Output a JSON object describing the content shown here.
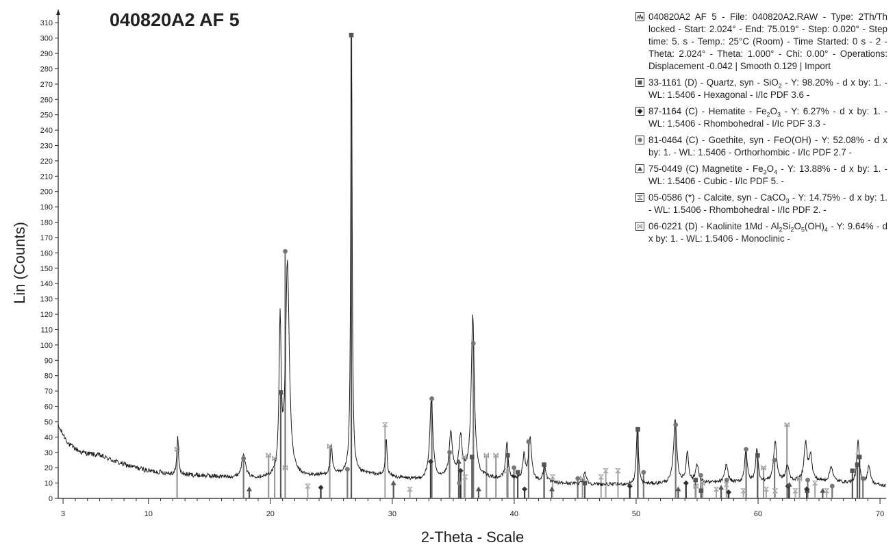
{
  "chart_data": {
    "type": "line",
    "title": "040820A2 AF 5",
    "xlabel": "2-Theta - Scale",
    "ylabel": "Lin (Counts)",
    "xlim": [
      2.6,
      70.5
    ],
    "ylim": [
      0,
      315
    ],
    "x_ticks": [
      3,
      10,
      20,
      30,
      40,
      50,
      60,
      70
    ],
    "x_tick_labels": [
      "3",
      "10",
      "20",
      "30",
      "40",
      "50",
      "60",
      "70"
    ],
    "y_ticks": [
      0,
      10,
      20,
      30,
      40,
      50,
      60,
      70,
      80,
      90,
      100,
      110,
      120,
      130,
      140,
      150,
      160,
      170,
      180,
      190,
      200,
      210,
      220,
      230,
      240,
      250,
      260,
      270,
      280,
      290,
      300,
      310
    ],
    "grid": false,
    "legend_position": "right",
    "pattern": {
      "name": "040820A2 AF 5",
      "baseline": [
        [
          2.6,
          47
        ],
        [
          3.5,
          35
        ],
        [
          4.5,
          30
        ],
        [
          6,
          28
        ],
        [
          8,
          22
        ],
        [
          10,
          18
        ],
        [
          12,
          16
        ],
        [
          14,
          15
        ],
        [
          16,
          14
        ],
        [
          18,
          13
        ],
        [
          20,
          13
        ],
        [
          23,
          14
        ],
        [
          26,
          16
        ],
        [
          28,
          16
        ],
        [
          30,
          14
        ],
        [
          32,
          12
        ],
        [
          34,
          13
        ],
        [
          36,
          15
        ],
        [
          38,
          13
        ],
        [
          40,
          12
        ],
        [
          43,
          10
        ],
        [
          46,
          9
        ],
        [
          50,
          9
        ],
        [
          54,
          10
        ],
        [
          58,
          10
        ],
        [
          62,
          11
        ],
        [
          66,
          11
        ],
        [
          70.5,
          8
        ]
      ],
      "peaks": [
        [
          12.4,
          26,
          0.07
        ],
        [
          17.8,
          16,
          0.18
        ],
        [
          20.8,
          100,
          0.1
        ],
        [
          21.4,
          140,
          0.18
        ],
        [
          25.0,
          18,
          0.1
        ],
        [
          26.65,
          290,
          0.07
        ],
        [
          29.5,
          25,
          0.08
        ],
        [
          33.2,
          52,
          0.15
        ],
        [
          34.8,
          28,
          0.15
        ],
        [
          35.6,
          25,
          0.15
        ],
        [
          36.6,
          105,
          0.15
        ],
        [
          39.4,
          24,
          0.12
        ],
        [
          40.8,
          16,
          0.12
        ],
        [
          41.3,
          28,
          0.15
        ],
        [
          42.5,
          10,
          0.15
        ],
        [
          45.8,
          8,
          0.15
        ],
        [
          50.1,
          38,
          0.1
        ],
        [
          53.2,
          42,
          0.15
        ],
        [
          54.2,
          20,
          0.12
        ],
        [
          55.0,
          12,
          0.15
        ],
        [
          57.4,
          12,
          0.15
        ],
        [
          59.0,
          22,
          0.12
        ],
        [
          59.9,
          22,
          0.12
        ],
        [
          61.4,
          26,
          0.15
        ],
        [
          62.4,
          10,
          0.15
        ],
        [
          63.9,
          24,
          0.15
        ],
        [
          64.3,
          16,
          0.15
        ],
        [
          66.0,
          10,
          0.15
        ],
        [
          68.2,
          28,
          0.12
        ],
        [
          69.1,
          12,
          0.15
        ]
      ]
    },
    "phases": [
      {
        "id": "quartz",
        "name": "33-1161 (D) - Quartz, syn - SiO2",
        "color": "#555555",
        "marker": "square",
        "lines": [
          [
            20.85,
            69
          ],
          [
            26.64,
            302
          ],
          [
            36.54,
            27
          ],
          [
            39.46,
            28
          ],
          [
            40.29,
            17
          ],
          [
            42.45,
            22
          ],
          [
            45.79,
            10
          ],
          [
            50.14,
            45
          ],
          [
            54.87,
            12
          ],
          [
            55.33,
            5
          ],
          [
            59.96,
            28
          ],
          [
            64.03,
            5
          ],
          [
            67.74,
            18
          ],
          [
            68.14,
            22
          ],
          [
            68.32,
            27
          ]
        ]
      },
      {
        "id": "hematite",
        "name": "87-1164 (C) - Hematite - Fe2O3",
        "color": "#333333",
        "marker": "diamond",
        "lines": [
          [
            24.14,
            7
          ],
          [
            33.15,
            24
          ],
          [
            35.61,
            18
          ],
          [
            40.85,
            6
          ],
          [
            49.48,
            8
          ],
          [
            54.09,
            10
          ],
          [
            57.59,
            4
          ],
          [
            62.45,
            8
          ],
          [
            63.99,
            6
          ]
        ]
      },
      {
        "id": "goethite",
        "name": "81-0464 (C) - Goethite, syn - FeO(OH)",
        "color": "#777777",
        "marker": "circle",
        "lines": [
          [
            17.8,
            26
          ],
          [
            21.22,
            161
          ],
          [
            26.32,
            19
          ],
          [
            33.24,
            65
          ],
          [
            34.7,
            30
          ],
          [
            35.5,
            10
          ],
          [
            36.65,
            101
          ],
          [
            39.98,
            20
          ],
          [
            41.18,
            37
          ],
          [
            45.21,
            13
          ],
          [
            50.61,
            17
          ],
          [
            53.24,
            48
          ],
          [
            55.3,
            15
          ],
          [
            57.43,
            12
          ],
          [
            59.02,
            32
          ],
          [
            61.35,
            25
          ],
          [
            64.07,
            12
          ],
          [
            66.08,
            8
          ],
          [
            68.6,
            13
          ]
        ]
      },
      {
        "id": "magnetite",
        "name": "75-0449 (C) Magnetite - Fe3O4",
        "color": "#555555",
        "marker": "triangle",
        "lines": [
          [
            18.27,
            6
          ],
          [
            30.1,
            10
          ],
          [
            35.45,
            24
          ],
          [
            37.08,
            6
          ],
          [
            43.09,
            6
          ],
          [
            53.45,
            6
          ],
          [
            56.97,
            7
          ],
          [
            62.57,
            9
          ],
          [
            65.3,
            5
          ]
        ]
      },
      {
        "id": "calcite",
        "name": "05-0586 (*) - Calcite, syn - CaCO3",
        "color": "#aaaaaa",
        "marker": "hourglass",
        "lines": [
          [
            23.06,
            8
          ],
          [
            29.41,
            48
          ],
          [
            31.44,
            6
          ],
          [
            35.97,
            14
          ],
          [
            39.4,
            18
          ],
          [
            43.15,
            14
          ],
          [
            47.12,
            14
          ],
          [
            47.51,
            18
          ],
          [
            48.51,
            18
          ],
          [
            56.57,
            6
          ],
          [
            57.4,
            9
          ],
          [
            58.8,
            5
          ],
          [
            60.67,
            6
          ],
          [
            61.4,
            5
          ],
          [
            63.06,
            5
          ],
          [
            64.67,
            10
          ],
          [
            65.62,
            5
          ]
        ]
      },
      {
        "id": "kaolinite",
        "name": "06-0221 (D) - Kaolinite 1Md - Al2Si2O5(OH)4",
        "color": "#999999",
        "marker": "bowtie",
        "lines": [
          [
            12.35,
            32
          ],
          [
            19.85,
            28
          ],
          [
            20.35,
            26
          ],
          [
            21.22,
            20
          ],
          [
            24.87,
            34
          ],
          [
            35.9,
            27
          ],
          [
            37.72,
            28
          ],
          [
            38.5,
            28
          ],
          [
            45.6,
            13
          ],
          [
            54.9,
            8
          ],
          [
            55.45,
            10
          ],
          [
            60.45,
            20
          ],
          [
            62.37,
            48
          ],
          [
            63.4,
            13
          ]
        ]
      }
    ]
  },
  "legend": {
    "entries": [
      {
        "symbol": "pattern-icon",
        "html": "040820A2 AF 5 - File: 040820A2.RAW - Type: 2Th/Th locked - Start: 2.024° - End: 75.019° - Step: 0.020° - Step time: 5. s - Temp.: 25°C (Room) - Time Started: 0 s - 2 - Theta: 2.024° - Theta: 1.000° - Chi: 0.00° - Operations: Displacement -0.042 | Smooth 0.129 | Import"
      },
      {
        "symbol": "square-icon",
        "html": "33-1161 (D) - Quartz, syn - SiO<sub>2</sub> - Y: 98.20% - d x by: 1. - WL: 1.5406 - Hexagonal - I/Ic PDF 3.6 -"
      },
      {
        "symbol": "diamond-icon",
        "html": "87-1164 (C) - Hematite - Fe<sub>2</sub>O<sub>3</sub> - Y: 6.27% - d x by: 1. - WL: 1.5406 - Rhombohedral - I/Ic PDF 3.3 -"
      },
      {
        "symbol": "circle-icon",
        "html": "81-0464 (C) - Goethite, syn - FeO(OH) - Y: 52.08% - d x by: 1. - WL: 1.5406 - Orthorhombic - I/Ic PDF 2.7 -"
      },
      {
        "symbol": "triangle-icon",
        "html": "75-0449 (C) Magnetite - Fe<sub>3</sub>O<sub>4</sub> - Y: 13.88% - d x by: 1. - WL: 1.5406 - Cubic - I/Ic PDF 5. -"
      },
      {
        "symbol": "hourglass-icon",
        "html": "05-0586 (*) - Calcite, syn - CaCO<sub>3</sub> - Y: 14.75% - d x by: 1. - WL: 1.5406 - Rhombohedral - I/Ic PDF 2. -"
      },
      {
        "symbol": "bowtie-icon",
        "html": "06-0221 (D) - Kaolinite 1Md - Al<sub>2</sub>Si<sub>2</sub>O<sub>5</sub>(OH)<sub>4</sub> - Y: 9.64% - d x by: 1. - WL: 1.5406 - Monoclinic -"
      }
    ]
  }
}
